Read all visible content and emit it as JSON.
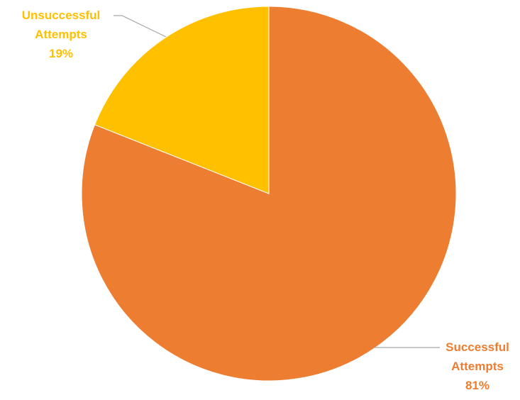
{
  "chart_data": {
    "type": "pie",
    "slices": [
      {
        "label_line1": "Successful",
        "label_line2": "Attempts",
        "percent_label": "81%",
        "value": 81,
        "color": "#ED7D31"
      },
      {
        "label_line1": "Unsuccessful",
        "label_line2": "Attempts",
        "percent_label": "19%",
        "value": 19,
        "color": "#FFC000"
      }
    ],
    "start": "12 o'clock",
    "direction": "clockwise",
    "legend": "none",
    "leader_line_color": "#A6A6A6"
  }
}
